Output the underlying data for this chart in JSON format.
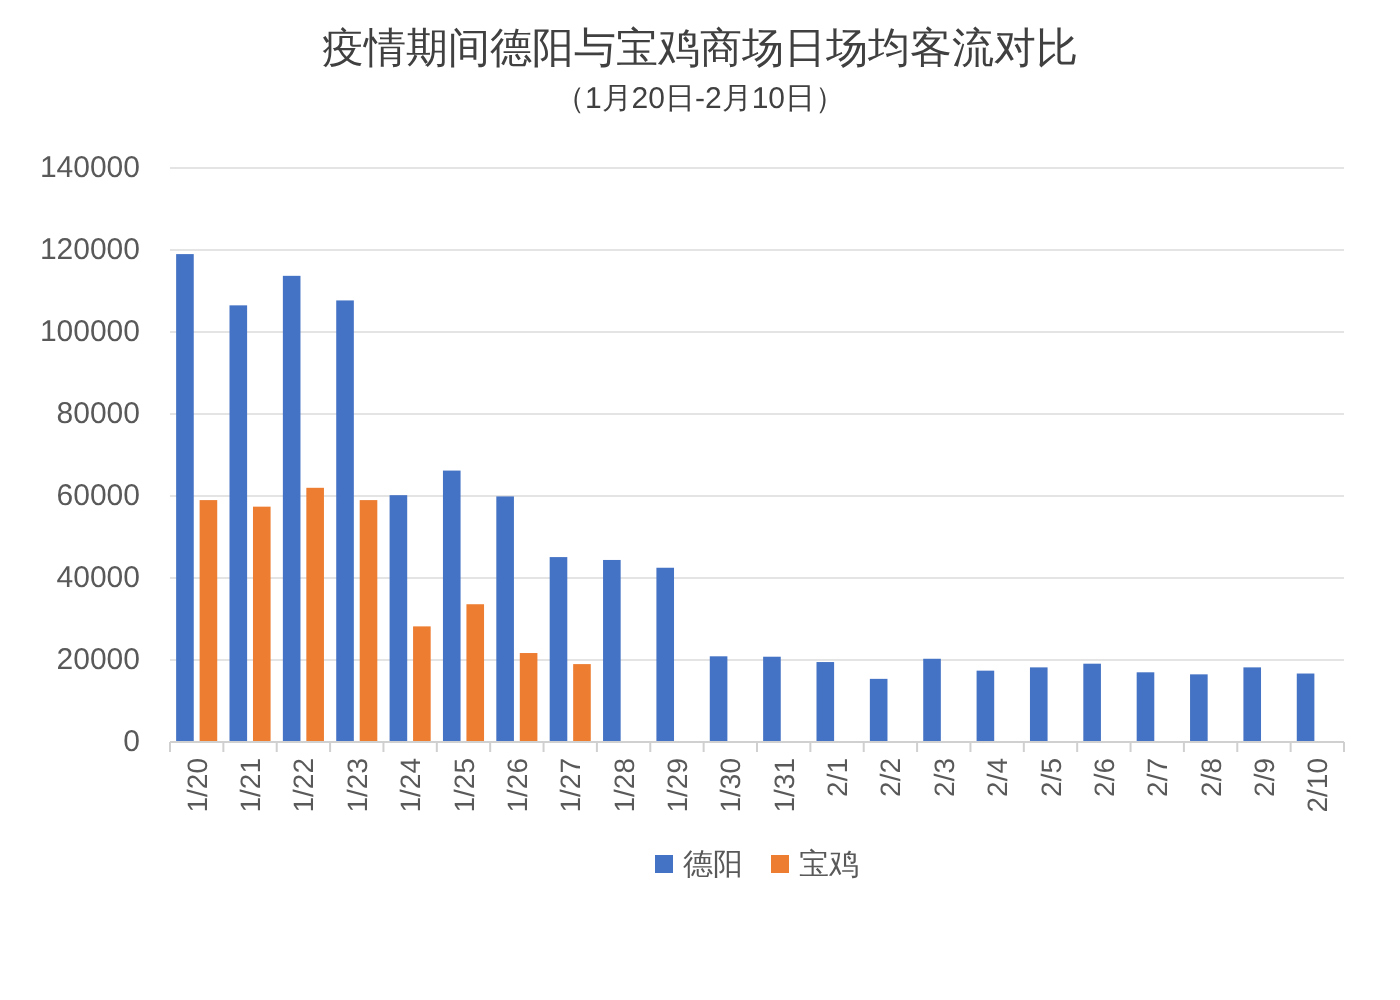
{
  "chart_data": {
    "type": "bar",
    "title": "疫情期间德阳与宝鸡商场日场均客流对比",
    "subtitle": "（1月20日-2月10日）",
    "categories": [
      "1/20",
      "1/21",
      "1/22",
      "1/23",
      "1/24",
      "1/25",
      "1/26",
      "1/27",
      "1/28",
      "1/29",
      "1/30",
      "1/31",
      "2/1",
      "2/2",
      "2/3",
      "2/4",
      "2/5",
      "2/6",
      "2/7",
      "2/8",
      "2/9",
      "2/10"
    ],
    "series": [
      {
        "name": "德阳",
        "color": "#4472c4",
        "values": [
          119000,
          106500,
          113700,
          107700,
          60200,
          66200,
          59900,
          45100,
          44400,
          42500,
          20900,
          20800,
          19500,
          15400,
          20300,
          17400,
          18200,
          19100,
          17000,
          16500,
          18200,
          16700
        ]
      },
      {
        "name": "宝鸡",
        "color": "#ed7d31",
        "values": [
          59000,
          57400,
          62000,
          59000,
          28200,
          33600,
          21700,
          19000,
          null,
          null,
          null,
          null,
          null,
          null,
          null,
          null,
          null,
          null,
          null,
          null,
          null,
          null
        ]
      }
    ],
    "ylim": [
      0,
      140000
    ],
    "yticks": [
      0,
      20000,
      40000,
      60000,
      80000,
      100000,
      120000,
      140000
    ],
    "grid": "y",
    "legend": "bottom"
  }
}
